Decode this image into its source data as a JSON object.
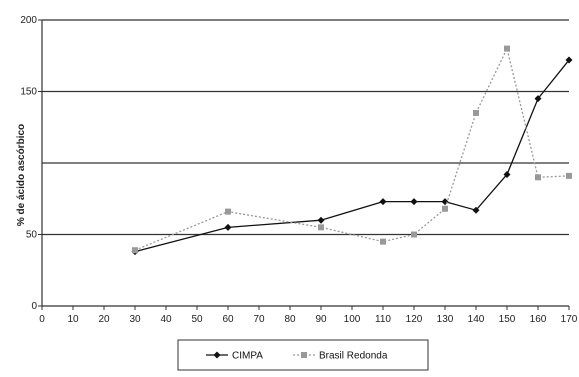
{
  "chart_data": {
    "type": "line",
    "title": "",
    "xlabel": "",
    "ylabel": "% de ácido ascórbico",
    "xlim": [
      0,
      170
    ],
    "ylim": [
      0,
      200
    ],
    "x_ticks": [
      0,
      10,
      20,
      30,
      40,
      50,
      60,
      70,
      80,
      90,
      100,
      110,
      120,
      130,
      140,
      150,
      160,
      170
    ],
    "y_ticks": [
      0,
      50,
      150,
      200
    ],
    "y_gridlines": [
      50,
      100,
      150,
      200
    ],
    "grid": true,
    "legend": "bottom-center",
    "series": [
      {
        "name": "CIMPA",
        "color": "#111111",
        "marker": "diamond",
        "line_style": "solid",
        "x": [
          30,
          60,
          90,
          110,
          120,
          130,
          140,
          150,
          160,
          170
        ],
        "values": [
          38,
          55,
          60,
          73,
          73,
          73,
          67,
          92,
          145,
          172
        ]
      },
      {
        "name": "Brasil Redonda",
        "color": "#999999",
        "marker": "square",
        "line_style": "dotted",
        "x": [
          30,
          60,
          90,
          110,
          120,
          130,
          140,
          150,
          160,
          170
        ],
        "values": [
          39,
          66,
          55,
          45,
          50,
          68,
          135,
          180,
          90,
          91
        ]
      }
    ]
  }
}
